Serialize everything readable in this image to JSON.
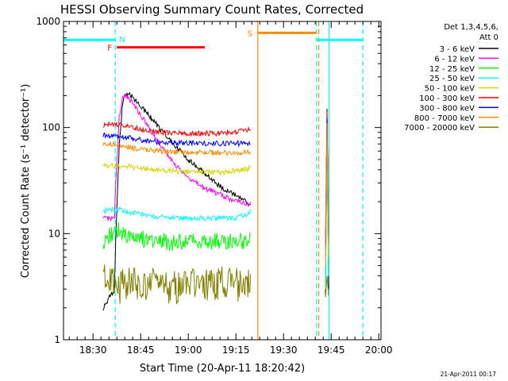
{
  "chart_data": {
    "type": "line",
    "title": "HESSI Observing Summary Count Rates, Corrected",
    "xlabel": "Start Time (20-Apr-11 18:20:42)",
    "ylabel": "Corrected Count Rate (s⁻¹ detector⁻¹)",
    "footer": "21-Apr-2011 00:17",
    "x_unit": "minutes since 18:20:42",
    "xlim": [
      0,
      100
    ],
    "ylim": [
      1,
      1000
    ],
    "y_scale": "log",
    "grid": false,
    "legend_placement": "right",
    "legend_header": [
      "Det 1,3,4,5,6,",
      "Att 0"
    ],
    "xticks": [
      {
        "label": "18:30",
        "value": 9.3
      },
      {
        "label": "18:45",
        "value": 24.3
      },
      {
        "label": "19:00",
        "value": 39.3
      },
      {
        "label": "19:15",
        "value": 54.3
      },
      {
        "label": "19:30",
        "value": 69.3
      },
      {
        "label": "19:45",
        "value": 84.3
      },
      {
        "label": "20:00",
        "value": 99.3
      }
    ],
    "yticks": [
      {
        "label": "1",
        "value": 1
      },
      {
        "label": "10",
        "value": 10
      },
      {
        "label": "100",
        "value": 100
      },
      {
        "label": "1000",
        "value": 1000
      }
    ],
    "series": [
      {
        "name": "3 - 6 keV",
        "color": "#000000",
        "segments": [
          [
            [
              12.5,
              2.0
            ],
            [
              16.0,
              3.0
            ],
            [
              16.5,
              10
            ],
            [
              17.5,
              60
            ],
            [
              18.5,
              160
            ],
            [
              19.5,
              210
            ],
            [
              21,
              200
            ],
            [
              23,
              175
            ],
            [
              26,
              140
            ],
            [
              29,
              110
            ],
            [
              32,
              85
            ],
            [
              35,
              68
            ],
            [
              38,
              55
            ],
            [
              41,
              45
            ],
            [
              44,
              38
            ],
            [
              47,
              32
            ],
            [
              50,
              27
            ],
            [
              53,
              24
            ],
            [
              56,
              21
            ],
            [
              58.5,
              19
            ],
            [
              59,
              18
            ]
          ],
          [
            [
              82.5,
              2.6
            ],
            [
              82.8,
              30
            ],
            [
              83.0,
              150
            ],
            [
              83.2,
              40
            ],
            [
              83.5,
              3
            ]
          ]
        ]
      },
      {
        "name": "6 - 12 keV",
        "color": "#ff00ff",
        "segments": [
          [
            [
              12.5,
              14
            ],
            [
              16.0,
              14
            ],
            [
              16.5,
              30
            ],
            [
              17.5,
              120
            ],
            [
              18.5,
              185
            ],
            [
              19.5,
              200
            ],
            [
              21,
              185
            ],
            [
              23,
              150
            ],
            [
              26,
              110
            ],
            [
              29,
              80
            ],
            [
              32,
              60
            ],
            [
              35,
              45
            ],
            [
              38,
              37
            ],
            [
              41,
              31
            ],
            [
              44,
              27
            ],
            [
              47,
              25
            ],
            [
              50,
              23
            ],
            [
              53,
              21
            ],
            [
              56,
              20
            ],
            [
              58.5,
              19
            ],
            [
              59,
              20
            ]
          ],
          [
            [
              82.5,
              3
            ],
            [
              82.8,
              25
            ],
            [
              83.0,
              130
            ],
            [
              83.2,
              30
            ],
            [
              83.5,
              4
            ]
          ]
        ]
      },
      {
        "name": "12 - 25 keV",
        "color": "#00ff00",
        "segments": [
          [
            [
              12.5,
              8
            ],
            [
              15,
              10
            ],
            [
              17,
              11
            ],
            [
              20,
              9
            ],
            [
              23,
              10
            ],
            [
              26,
              8.5
            ],
            [
              30,
              9
            ],
            [
              34,
              8
            ],
            [
              38,
              8.5
            ],
            [
              42,
              8.5
            ],
            [
              46,
              8.5
            ],
            [
              50,
              8.5
            ],
            [
              54,
              8.5
            ],
            [
              57,
              8.5
            ],
            [
              59,
              8.5
            ]
          ],
          [
            [
              82.5,
              3
            ],
            [
              82.8,
              15
            ],
            [
              83.0,
              80
            ],
            [
              83.2,
              20
            ],
            [
              83.5,
              4
            ]
          ]
        ]
      },
      {
        "name": "25 - 50 keV",
        "color": "#00ffff",
        "segments": [
          [
            [
              12.5,
              16
            ],
            [
              16,
              17
            ],
            [
              18,
              17
            ],
            [
              20,
              16
            ],
            [
              23,
              15.5
            ],
            [
              26,
              15
            ],
            [
              30,
              14.5
            ],
            [
              34,
              14
            ],
            [
              38,
              14
            ],
            [
              42,
              14
            ],
            [
              46,
              14
            ],
            [
              50,
              14
            ],
            [
              54,
              14
            ],
            [
              57,
              15
            ],
            [
              59,
              16
            ]
          ],
          [
            [
              82.5,
              3
            ],
            [
              82.8,
              20
            ],
            [
              83.0,
              100
            ],
            [
              83.2,
              25
            ],
            [
              83.5,
              4
            ]
          ]
        ]
      },
      {
        "name": "50 - 100 keV",
        "color": "#d4d400",
        "segments": [
          [
            [
              12.5,
              43
            ],
            [
              15,
              44
            ],
            [
              18,
              43
            ],
            [
              20,
              43
            ],
            [
              23,
              42
            ],
            [
              26,
              41
            ],
            [
              30,
              40
            ],
            [
              34,
              39
            ],
            [
              38,
              38
            ],
            [
              42,
              38
            ],
            [
              46,
              38
            ],
            [
              50,
              38
            ],
            [
              54,
              39
            ],
            [
              57,
              40
            ],
            [
              59,
              42
            ]
          ],
          [
            [
              82.5,
              5
            ],
            [
              82.8,
              30
            ],
            [
              83.0,
              90
            ],
            [
              83.2,
              30
            ],
            [
              83.5,
              6
            ]
          ]
        ]
      },
      {
        "name": "100 - 300 keV",
        "color": "#ff0000",
        "segments": [
          [
            [
              12.5,
              105
            ],
            [
              15,
              108
            ],
            [
              18,
              107
            ],
            [
              20,
              103
            ],
            [
              23,
              98
            ],
            [
              26,
              94
            ],
            [
              30,
              91
            ],
            [
              34,
              89
            ],
            [
              38,
              88
            ],
            [
              42,
              88
            ],
            [
              46,
              88
            ],
            [
              50,
              89
            ],
            [
              54,
              91
            ],
            [
              57,
              93
            ],
            [
              59,
              96
            ]
          ],
          [
            [
              82.5,
              8
            ],
            [
              82.8,
              50
            ],
            [
              83.0,
              140
            ],
            [
              83.2,
              50
            ],
            [
              83.5,
              10
            ]
          ]
        ]
      },
      {
        "name": "300 - 800 keV",
        "color": "#0000ff",
        "segments": [
          [
            [
              12.5,
              84
            ],
            [
              15,
              84
            ],
            [
              18,
              82
            ],
            [
              20,
              80
            ],
            [
              23,
              77
            ],
            [
              26,
              75
            ],
            [
              30,
              73
            ],
            [
              34,
              72
            ],
            [
              38,
              71
            ],
            [
              42,
              71
            ],
            [
              46,
              71
            ],
            [
              50,
              71
            ],
            [
              54,
              71
            ],
            [
              57,
              71
            ],
            [
              59,
              71
            ]
          ],
          [
            [
              82.5,
              7
            ],
            [
              82.8,
              40
            ],
            [
              83.0,
              120
            ],
            [
              83.2,
              40
            ],
            [
              83.5,
              9
            ]
          ]
        ]
      },
      {
        "name": "800 - 7000 keV",
        "color": "#ff8c00",
        "segments": [
          [
            [
              12.5,
              70
            ],
            [
              15,
              70
            ],
            [
              18,
              69
            ],
            [
              20,
              66
            ],
            [
              23,
              63
            ],
            [
              26,
              61
            ],
            [
              30,
              60
            ],
            [
              34,
              59
            ],
            [
              38,
              58
            ],
            [
              42,
              58
            ],
            [
              46,
              58
            ],
            [
              50,
              58
            ],
            [
              54,
              58
            ],
            [
              57,
              58
            ],
            [
              59,
              58
            ]
          ],
          [
            [
              82.5,
              6
            ],
            [
              82.8,
              35
            ],
            [
              83.0,
              110
            ],
            [
              83.2,
              35
            ],
            [
              83.5,
              8
            ]
          ]
        ]
      },
      {
        "name": "7000 - 20000 keV",
        "color": "#808000",
        "segments": [
          [
            [
              12.5,
              4.5
            ],
            [
              15,
              3.5
            ],
            [
              17,
              3.0
            ],
            [
              20,
              3.4
            ],
            [
              25,
              3.2
            ],
            [
              30,
              3.3
            ],
            [
              35,
              3.1
            ],
            [
              40,
              3.3
            ],
            [
              45,
              3.2
            ],
            [
              50,
              3.4
            ],
            [
              55,
              3.3
            ],
            [
              59,
              3.5
            ]
          ],
          [
            [
              82.5,
              2.5
            ],
            [
              83.0,
              4
            ],
            [
              83.5,
              2.6
            ]
          ]
        ]
      }
    ],
    "flag_bars": [
      {
        "label": "",
        "color": "#00ffff",
        "x0": 0,
        "x1": 16.3,
        "y": 670
      },
      {
        "label": "N",
        "color": "#00ffff",
        "x0": 16.3,
        "x1": 16.3,
        "y": 670
      },
      {
        "label": "F",
        "color": "#ff0000",
        "x0": 16.8,
        "x1": 44.5,
        "y": 570
      },
      {
        "label": "S",
        "color": "#ff8c00",
        "x0": 61.2,
        "x1": 79.7,
        "y": 780
      },
      {
        "label": "",
        "color": "#00ffff",
        "x0": 79.7,
        "x1": 94.3,
        "y": 670
      }
    ],
    "vertical_lines": [
      {
        "x": 16.3,
        "color": "#00ffff",
        "style": "dashed"
      },
      {
        "x": 61.2,
        "color": "#ff8c00",
        "style": "solid"
      },
      {
        "x": 79.7,
        "color": "#00ffff",
        "style": "dashed"
      },
      {
        "x": 80.4,
        "color": "#ff8c00",
        "style": "dashed"
      },
      {
        "x": 83.6,
        "color": "#00ffff",
        "style": "solid"
      },
      {
        "x": 94.3,
        "color": "#00ffff",
        "style": "dashed"
      }
    ]
  }
}
